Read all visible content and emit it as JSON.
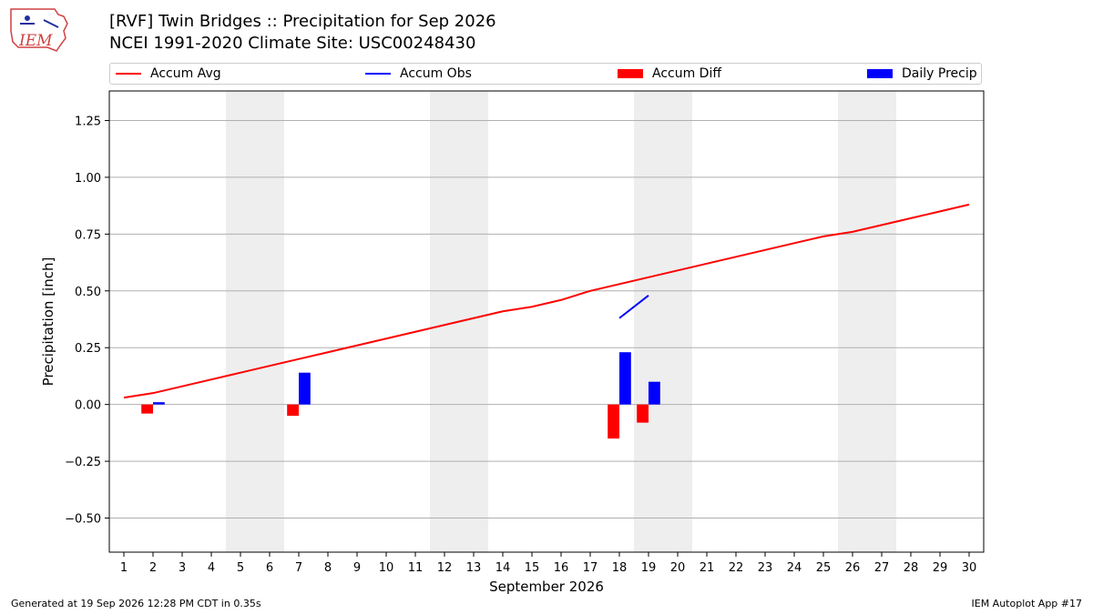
{
  "header": {
    "title_line1": "[RVF] Twin Bridges :: Precipitation for Sep 2026",
    "title_line2": "NCEI 1991-2020 Climate Site: USC00248430"
  },
  "logo": {
    "text": "IEM"
  },
  "footer": {
    "left": "Generated at 19 Sep 2026 12:28 PM CDT in 0.35s",
    "right": "IEM Autoplot App #17"
  },
  "colors": {
    "avg": "#ff0000",
    "obs": "#0000ff",
    "diff": "#ff0000",
    "precip": "#0000ff",
    "weekend": "#eeeeee",
    "grid": "#b0b0b0"
  },
  "chart_data": {
    "type": "bar",
    "title": "[RVF] Twin Bridges :: Precipitation for Sep 2026",
    "subtitle": "NCEI 1991-2020 Climate Site: USC00248430",
    "xlabel": "September 2026",
    "ylabel": "Precipitation [inch]",
    "xlim": [
      0.5,
      30.5
    ],
    "ylim": [
      -0.65,
      1.38
    ],
    "yticks": [
      -0.5,
      -0.25,
      0.0,
      0.25,
      0.5,
      0.75,
      1.0,
      1.25
    ],
    "ytick_labels": [
      "−0.50",
      "−0.25",
      "0.00",
      "0.25",
      "0.50",
      "0.75",
      "1.00",
      "1.25"
    ],
    "x": [
      1,
      2,
      3,
      4,
      5,
      6,
      7,
      8,
      9,
      10,
      11,
      12,
      13,
      14,
      15,
      16,
      17,
      18,
      19,
      20,
      21,
      22,
      23,
      24,
      25,
      26,
      27,
      28,
      29,
      30
    ],
    "xtick_labels": [
      "1",
      "2",
      "3",
      "4",
      "5",
      "6",
      "7",
      "8",
      "9",
      "10",
      "11",
      "12",
      "13",
      "14",
      "15",
      "16",
      "17",
      "18",
      "19",
      "20",
      "21",
      "22",
      "23",
      "24",
      "25",
      "26",
      "27",
      "28",
      "29",
      "30"
    ],
    "grid": "horizontal",
    "legend_position": "top",
    "legend": [
      "Accum Avg",
      "Accum Obs",
      "Accum Diff",
      "Daily Precip"
    ],
    "weekend_shading": [
      [
        4.5,
        6.5
      ],
      [
        11.5,
        13.5
      ],
      [
        18.5,
        20.5
      ],
      [
        25.5,
        27.5
      ]
    ],
    "series": [
      {
        "name": "Accum Avg",
        "type": "line",
        "x": [
          1,
          2,
          3,
          4,
          5,
          6,
          7,
          8,
          9,
          10,
          11,
          12,
          13,
          14,
          15,
          16,
          17,
          18,
          19,
          20,
          21,
          22,
          23,
          24,
          25,
          26,
          27,
          28,
          29,
          30
        ],
        "values": [
          0.03,
          0.05,
          0.08,
          0.11,
          0.14,
          0.17,
          0.2,
          0.23,
          0.26,
          0.29,
          0.32,
          0.35,
          0.38,
          0.41,
          0.43,
          0.46,
          0.5,
          0.53,
          0.56,
          0.59,
          0.62,
          0.65,
          0.68,
          0.71,
          0.74,
          0.76,
          0.79,
          0.82,
          0.85,
          0.88
        ]
      },
      {
        "name": "Accum Obs",
        "type": "line",
        "x": [
          18,
          19
        ],
        "values": [
          0.38,
          0.48
        ]
      },
      {
        "name": "Accum Diff",
        "type": "bar",
        "x": [
          2,
          7,
          18,
          19
        ],
        "values": [
          -0.04,
          -0.05,
          -0.15,
          -0.08
        ]
      },
      {
        "name": "Daily Precip",
        "type": "bar",
        "x": [
          2,
          7,
          18,
          19
        ],
        "values": [
          0.01,
          0.14,
          0.23,
          0.1
        ]
      }
    ]
  }
}
